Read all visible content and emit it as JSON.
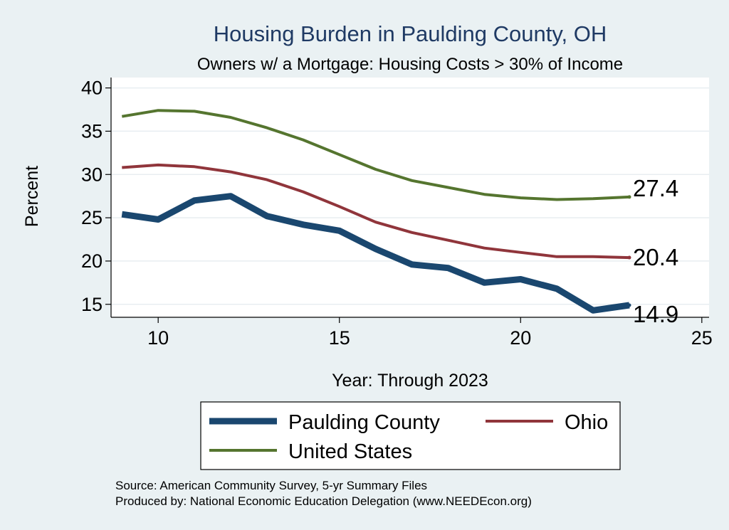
{
  "chart_data": {
    "type": "line",
    "title": "Housing Burden in Paulding County, OH",
    "subtitle": "Owners w/ a Mortgage: Housing Costs > 30% of Income",
    "xlabel": "Year: Through 2023",
    "ylabel": "Percent",
    "xlim": [
      8.7,
      25.2
    ],
    "ylim": [
      13.5,
      41.2
    ],
    "xticks": [
      10,
      15,
      20,
      25
    ],
    "yticks": [
      15,
      20,
      25,
      30,
      35,
      40
    ],
    "grid": true,
    "x": [
      9,
      10,
      11,
      12,
      13,
      14,
      15,
      16,
      17,
      18,
      19,
      20,
      21,
      22,
      23
    ],
    "series": [
      {
        "name": "Paulding County",
        "color": "#1a476f",
        "values": [
          25.4,
          24.8,
          27.0,
          27.5,
          25.2,
          24.2,
          23.5,
          21.4,
          19.6,
          19.2,
          17.5,
          17.9,
          16.8,
          14.3,
          14.9
        ],
        "end_label": "14.9"
      },
      {
        "name": "Ohio",
        "color": "#90353b",
        "values": [
          30.8,
          31.1,
          30.9,
          30.3,
          29.4,
          28.0,
          26.3,
          24.5,
          23.3,
          22.4,
          21.5,
          21.0,
          20.5,
          20.5,
          20.4
        ],
        "end_label": "20.4"
      },
      {
        "name": "United States",
        "color": "#55752f",
        "values": [
          36.7,
          37.4,
          37.3,
          36.6,
          35.4,
          34.0,
          32.3,
          30.6,
          29.3,
          28.5,
          27.7,
          27.3,
          27.1,
          27.2,
          27.4
        ],
        "end_label": "27.4"
      }
    ],
    "legend_position": "bottom"
  },
  "footer": {
    "source": "Source: American Community Survey, 5-yr Summary Files",
    "produced": "Produced by: National Economic Education Delegation (www.NEEDEcon.org)"
  }
}
